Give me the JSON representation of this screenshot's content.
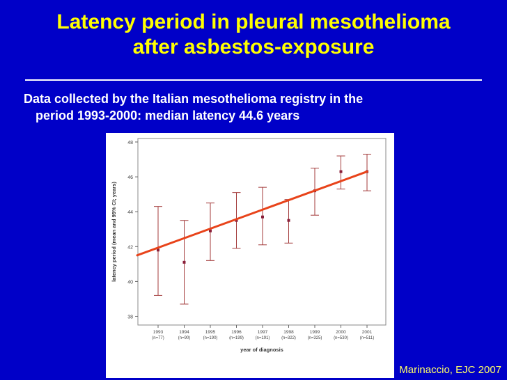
{
  "slide": {
    "title_line1": "Latency period in pleural mesothelioma",
    "title_line2": "after asbestos-exposure",
    "subtitle_line1": "Data collected by the Italian mesothelioma registry in the",
    "subtitle_line2": "period 1993-2000: median latency 44.6 years",
    "citation": "Marinaccio, EJC 2007"
  },
  "colors": {
    "background": "#0000c8",
    "title": "#ffff00",
    "text": "#ffffff",
    "citation": "#ffff66",
    "trend_line": "#e8431a",
    "error_bar": "#a33a3a"
  },
  "chart_data": {
    "type": "scatter",
    "title": "",
    "xlabel": "year of diagnosis",
    "ylabel": "latency period (mean and 95% CI; years)",
    "ylim": [
      37.5,
      48.2
    ],
    "yticks": [
      38,
      40,
      42,
      44,
      46,
      48
    ],
    "categories": [
      "1993",
      "1994",
      "1995",
      "1996",
      "1997",
      "1998",
      "1999",
      "2000",
      "2001"
    ],
    "category_notes": [
      "(n=77)",
      "(n=90)",
      "(n=190)",
      "(n=199)",
      "(n=191)",
      "(n=322)",
      "(n=325)",
      "(n=530)",
      "(n=511)"
    ],
    "mean": [
      41.8,
      41.1,
      42.9,
      43.5,
      43.7,
      43.5,
      45.2,
      46.3,
      46.3
    ],
    "ci_low": [
      39.2,
      38.7,
      41.2,
      41.9,
      42.1,
      42.2,
      43.8,
      45.3,
      45.2
    ],
    "ci_high": [
      44.3,
      43.5,
      44.5,
      45.1,
      45.4,
      44.7,
      46.5,
      47.2,
      47.3
    ],
    "trend_line": {
      "x": [
        "1993",
        "2001"
      ],
      "y": [
        41.5,
        46.3
      ]
    },
    "grid": false,
    "legend": "none"
  }
}
